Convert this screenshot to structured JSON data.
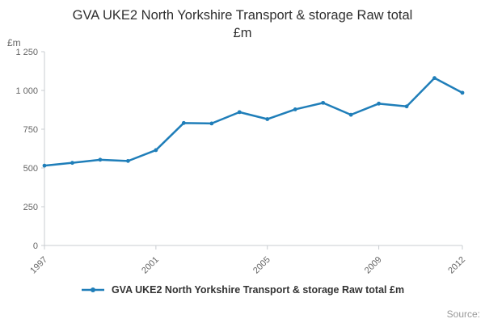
{
  "header": {
    "title_line1": "GVA UKE2 North Yorkshire Transport & storage Raw total",
    "title_line2": "£m",
    "y_axis_unit": "£m"
  },
  "chart_data": {
    "type": "line",
    "title": "GVA UKE2 North Yorkshire Transport & storage Raw total £m",
    "x": [
      1997,
      1998,
      1999,
      2000,
      2001,
      2002,
      2003,
      2004,
      2005,
      2006,
      2007,
      2008,
      2009,
      2010,
      2011,
      2012
    ],
    "series": [
      {
        "name": "GVA UKE2 North Yorkshire Transport & storage Raw total £m",
        "color": "#1F7EB9",
        "values": [
          515,
          533,
          553,
          545,
          615,
          790,
          787,
          860,
          815,
          878,
          920,
          843,
          915,
          897,
          1080,
          985
        ]
      }
    ],
    "ylim": [
      0,
      1250
    ],
    "yticks": [
      0,
      250,
      500,
      750,
      1000,
      1250
    ],
    "ytick_labels": [
      "0",
      "250",
      "500",
      "750",
      "1 000",
      "1 250"
    ],
    "xticks": [
      1997,
      2001,
      2005,
      2009,
      2012
    ],
    "grid": false,
    "legend_position": "bottom",
    "axis_color": "#c9ccd1",
    "tick_label_color": "#666666"
  },
  "legend": {
    "label": "GVA UKE2 North Yorkshire Transport & storage Raw total £m"
  },
  "footer": {
    "source_label": "Source:"
  }
}
